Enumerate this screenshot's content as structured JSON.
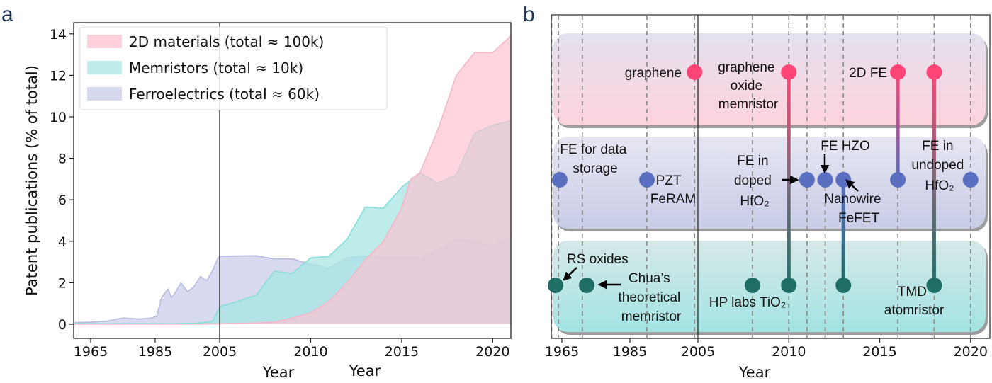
{
  "panels": {
    "a": {
      "label": "a"
    },
    "b": {
      "label": "b"
    }
  },
  "chart_data": [
    {
      "type": "area",
      "panel": "a",
      "title": "",
      "xlabel": "Year",
      "xlabel_secondary": "Year",
      "ylabel": "Patent publications (% of total)",
      "ylim": [
        0,
        14.4
      ],
      "yticks": [
        0,
        2,
        4,
        6,
        8,
        10,
        12,
        14
      ],
      "xaxis_broken": true,
      "xticks": [
        1965,
        1985,
        2005,
        2010,
        2015,
        2020
      ],
      "xtick_labels": [
        "1965",
        "1985",
        "2005",
        "2010",
        "2015",
        "2020"
      ],
      "x_segments": [
        {
          "range": [
            1960,
            2005
          ],
          "scale": "compressed"
        },
        {
          "range": [
            2005,
            2021
          ],
          "scale": "expanded"
        }
      ],
      "vline_at": 2005,
      "grid": false,
      "legend_position": "top-left",
      "series": [
        {
          "name": "2D materials (total ≈ 100k)",
          "color": "#ffc0d0",
          "line_color": "#f7b5c8",
          "x": [
            1960,
            1990,
            2005,
            2006,
            2007,
            2008,
            2009,
            2010,
            2011,
            2012,
            2013,
            2014,
            2015,
            2015.5,
            2016,
            2017,
            2018,
            2019,
            2020,
            2021
          ],
          "values": [
            0,
            0,
            0.02,
            0.04,
            0.06,
            0.1,
            0.3,
            0.55,
            1.1,
            2.0,
            3.1,
            4.0,
            5.6,
            7.0,
            7.3,
            9.4,
            12.0,
            13.1,
            13.1,
            13.9
          ]
        },
        {
          "name": "Memristors (total ≈ 10k)",
          "color": "#a8e6e4",
          "line_color": "#86ddd9",
          "x": [
            1960,
            1970,
            1980,
            1990,
            1998,
            2001,
            2003,
            2004,
            2005,
            2006,
            2007,
            2008,
            2009,
            2010,
            2011,
            2012,
            2013,
            2014,
            2015,
            2016,
            2017,
            2018,
            2019,
            2020,
            2021
          ],
          "values": [
            0.03,
            0.02,
            0.03,
            0.02,
            0.05,
            0.1,
            0.17,
            0.5,
            0.85,
            1.1,
            1.4,
            2.55,
            2.45,
            3.2,
            3.27,
            4.1,
            5.65,
            5.6,
            6.6,
            7.3,
            6.8,
            7.2,
            9.2,
            9.6,
            9.8
          ]
        },
        {
          "name": "Ferroelectrics (total ≈ 60k)",
          "color": "#c8cbe8",
          "line_color": "#b8bce0",
          "x": [
            1960,
            1965,
            1970,
            1975,
            1980,
            1984,
            1985.5,
            1987,
            1989,
            1990,
            1991,
            1993,
            1995,
            1997,
            1999,
            2001,
            2003,
            2004.5,
            2005,
            2007,
            2008,
            2009,
            2010,
            2011,
            2012,
            2013,
            2014,
            2015,
            2016,
            2017,
            2018,
            2019,
            2020,
            2021
          ],
          "values": [
            0.08,
            0.1,
            0.15,
            0.3,
            0.25,
            0.3,
            0.4,
            1.3,
            1.7,
            1.3,
            1.47,
            2.0,
            1.57,
            1.8,
            2.3,
            2.1,
            2.66,
            3.2,
            3.28,
            3.3,
            3.15,
            3.15,
            2.9,
            2.7,
            3.2,
            3.28,
            3.2,
            3.2,
            3.2,
            3.6,
            4.1,
            4.0,
            3.8,
            4.2
          ]
        }
      ]
    },
    {
      "type": "timeline",
      "panel": "b",
      "xlabel": "Year",
      "xticks": [
        1965,
        1985,
        2005,
        2010,
        2015,
        2020
      ],
      "xtick_labels": [
        "1965",
        "1985",
        "2005",
        "2010",
        "2015",
        "2020"
      ],
      "xaxis_broken": true,
      "vline_at": 2005,
      "dashed_year_lines": [
        1962,
        1964,
        1971,
        1990,
        2004,
        2008,
        2010,
        2011,
        2012,
        2013,
        2016,
        2018,
        2020
      ],
      "lanes": [
        {
          "name": "2D materials",
          "color_top": "#e4e0ee",
          "color_bottom": "#fdd3dd",
          "dot_color": "#ff4577"
        },
        {
          "name": "Ferroelectrics",
          "color_top": "#e6e6f2",
          "color_bottom": "#c8cce6",
          "dot_color": "#5b6fc1"
        },
        {
          "name": "Memristors",
          "color_top": "#d6e8e8",
          "color_bottom": "#a3e4e3",
          "dot_color": "#1f6e66"
        }
      ],
      "events": [
        {
          "lane": 0,
          "year": 2004,
          "label": [
            "graphene"
          ]
        },
        {
          "lane": 0,
          "year": 2010,
          "label": [
            "graphene",
            "oxide",
            "memristor"
          ]
        },
        {
          "lane": 0,
          "year": 2016,
          "label": [
            "2D FE"
          ]
        },
        {
          "lane": 0,
          "year": 2018,
          "label": []
        },
        {
          "lane": 1,
          "year": 1964,
          "label": [
            "FE for data",
            "storage"
          ]
        },
        {
          "lane": 1,
          "year": 1990,
          "label": [
            "PZT",
            "FeRAM"
          ]
        },
        {
          "lane": 1,
          "year": 2011,
          "label": [
            "FE in",
            "doped",
            "HfO₂"
          ]
        },
        {
          "lane": 1,
          "year": 2012,
          "label": [
            "FE HZO"
          ]
        },
        {
          "lane": 1,
          "year": 2013,
          "label": [
            "Nanowire",
            "FeFET"
          ]
        },
        {
          "lane": 1,
          "year": 2016,
          "label": []
        },
        {
          "lane": 1,
          "year": 2020,
          "label": [
            "FE in",
            "undoped",
            "HfO₂"
          ]
        },
        {
          "lane": 2,
          "year": 1962,
          "label": [
            "RS oxides"
          ]
        },
        {
          "lane": 2,
          "year": 1971,
          "label": [
            "Chua’s",
            "theoretical",
            "memristor"
          ]
        },
        {
          "lane": 2,
          "year": 2008,
          "label": [
            "HP labs TiO₂"
          ]
        },
        {
          "lane": 2,
          "year": 2010,
          "label": []
        },
        {
          "lane": 2,
          "year": 2013,
          "label": []
        },
        {
          "lane": 2,
          "year": 2018,
          "label": [
            "TMD",
            "atomristor"
          ]
        }
      ],
      "connectors": [
        {
          "year": 2010,
          "from_lane": 0,
          "to_lane": 2
        },
        {
          "year": 2016,
          "from_lane": 0,
          "to_lane": 1
        },
        {
          "year": 2018,
          "from_lane": 0,
          "to_lane": 2
        },
        {
          "year": 2013,
          "from_lane": 1,
          "to_lane": 2
        }
      ]
    }
  ]
}
